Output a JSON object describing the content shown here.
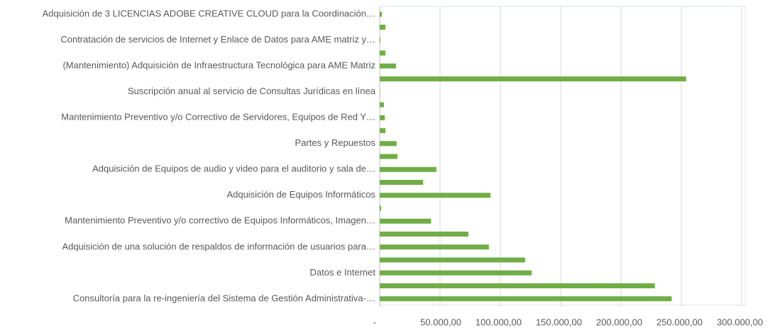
{
  "chart_data": {
    "type": "hbar",
    "color": "#70ad47",
    "grid": true,
    "categories": [
      "Consultoría para la re-ingeniería del Sistema de Gestión Administrativa-…",
      null,
      "Datos e Internet",
      null,
      "Adquisición de una solución de respaldos de información de usuarios para…",
      null,
      "Mantenimiento Preventivo y/o correctivo de Equipos Informáticos, Imagen…",
      null,
      "Adquisición de Equipos Informáticos",
      null,
      "Adquisición de Equipos de audio  y video para el auditorio y sala de…",
      null,
      "Partes y Repuestos",
      null,
      "Mantenimiento Preventivo y/o Correctivo de Servidores, Equipos de Red Y…",
      null,
      "Suscripción anual al servicio de Consultas Jurídicas en línea",
      null,
      "(Mantenimiento) Adquisición de Infraestructura Tecnológica para AME Matriz",
      null,
      "Contratación de servicios de Internet y Enlace de Datos para AME matriz y…",
      null,
      "Adquisición de 3 LICENCIAS ADOBE CREATIVE CLOUD para la Coordinación…"
    ],
    "values": [
      242000,
      228000,
      126000,
      120500,
      90500,
      73500,
      42500,
      1200,
      91800,
      36000,
      47000,
      14700,
      14000,
      4700,
      4200,
      3500,
      300,
      254000,
      13500,
      4700,
      600,
      4700,
      1800
    ],
    "xlim": [
      0,
      300000
    ],
    "xticks": [
      {
        "value": 0,
        "label": "-"
      },
      {
        "value": 50000,
        "label": "50.000,00"
      },
      {
        "value": 100000,
        "label": "100.000,00"
      },
      {
        "value": 150000,
        "label": "150.000,00"
      },
      {
        "value": 200000,
        "label": "200.000,00"
      },
      {
        "value": 250000,
        "label": "250.000,00"
      },
      {
        "value": 300000,
        "label": "300.000,00"
      }
    ]
  }
}
